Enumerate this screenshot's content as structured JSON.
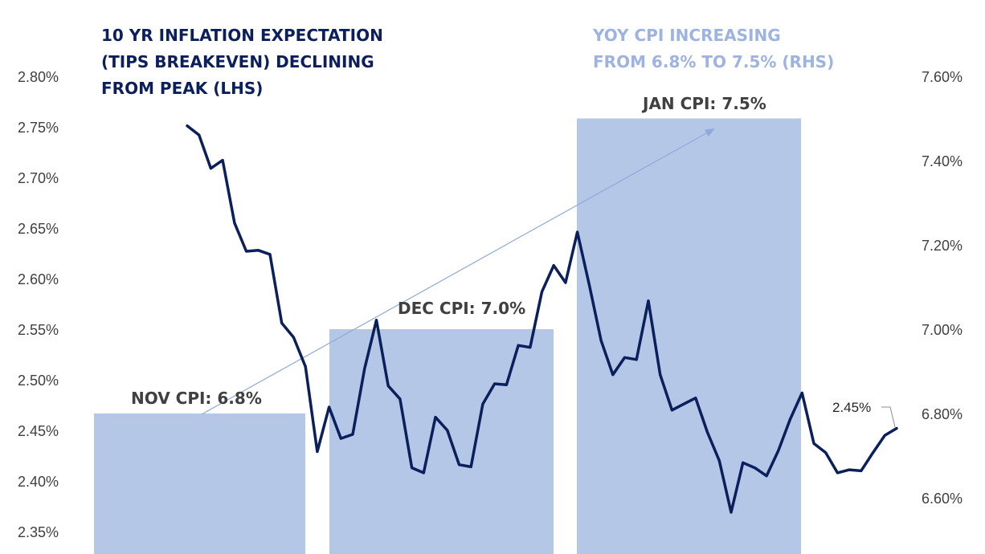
{
  "chart_data": {
    "type": "line",
    "left_axis": {
      "ylim": [
        2.33,
        2.82
      ],
      "ticks": [
        2.8,
        2.75,
        2.7,
        2.65,
        2.6,
        2.55,
        2.5,
        2.45,
        2.4,
        2.35
      ],
      "tick_labels": [
        "2.80%",
        "2.75%",
        "2.70%",
        "2.65%",
        "2.60%",
        "2.55%",
        "2.50%",
        "2.45%",
        "2.40%",
        "2.35%"
      ]
    },
    "right_axis": {
      "ylim": [
        6.46,
        7.64
      ],
      "ticks": [
        7.6,
        7.4,
        7.2,
        7.0,
        6.8,
        6.6
      ],
      "tick_labels": [
        "7.60%",
        "7.40%",
        "7.20%",
        "7.00%",
        "6.80%",
        "6.60%"
      ]
    },
    "series": [
      {
        "axis": "left",
        "color": "#0b1f5c",
        "values": [
          2.751,
          2.742,
          2.709,
          2.717,
          2.655,
          2.627,
          2.628,
          2.624,
          2.556,
          2.542,
          2.513,
          2.429,
          2.473,
          2.442,
          2.446,
          2.511,
          2.559,
          2.494,
          2.481,
          2.413,
          2.408,
          2.463,
          2.45,
          2.416,
          2.414,
          2.476,
          2.496,
          2.495,
          2.534,
          2.532,
          2.587,
          2.613,
          2.596,
          2.646,
          2.594,
          2.539,
          2.505,
          2.522,
          2.52,
          2.578,
          2.505,
          2.47,
          2.476,
          2.482,
          2.448,
          2.42,
          2.369,
          2.418,
          2.413,
          2.405,
          2.43,
          2.461,
          2.487,
          2.437,
          2.428,
          2.408,
          2.411,
          2.41,
          2.428,
          2.445,
          2.452
        ]
      }
    ],
    "bars": [
      {
        "label": "NOV CPI: 6.8%",
        "value": 6.8,
        "axis": "right",
        "color": "#b4c7e7"
      },
      {
        "label": "DEC CPI: 7.0%",
        "value": 7.0,
        "axis": "right",
        "color": "#b4c7e7"
      },
      {
        "label": "JAN CPI: 7.5%",
        "value": 7.5,
        "axis": "right",
        "color": "#b4c7e7"
      }
    ],
    "annotations": {
      "left_title": [
        "10 YR INFLATION EXPECTATION",
        "(TIPS BREAKEVEN) DECLINING",
        "FROM PEAK (LHS)"
      ],
      "right_title": [
        "YOY CPI INCREASING",
        "FROM 6.8% TO 7.5% (RHS)"
      ],
      "last_value_label": "2.45%"
    },
    "grid": false,
    "legend": "none"
  }
}
